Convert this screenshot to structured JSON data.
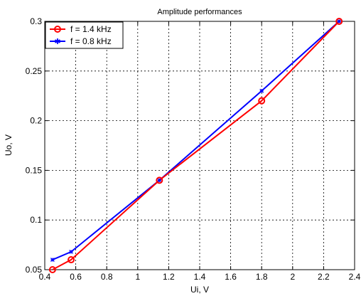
{
  "chart_data": {
    "type": "line",
    "title": "Amplitude performances",
    "xlabel": "Ui, V",
    "ylabel": "Uo, V",
    "xlim": [
      0.4,
      2.4
    ],
    "ylim": [
      0.05,
      0.3
    ],
    "xticks": [
      0.4,
      0.6,
      0.8,
      1,
      1.2,
      1.4,
      1.6,
      1.8,
      2,
      2.2,
      2.4
    ],
    "xtick_labels": [
      "0.4",
      "0.6",
      "0.8",
      "1",
      "1.2",
      "1.4",
      "1.6",
      "1.8",
      "2",
      "2.2",
      "2.4"
    ],
    "yticks": [
      0.05,
      0.1,
      0.15,
      0.2,
      0.25,
      0.3
    ],
    "ytick_labels": [
      "0.05",
      "0.1",
      "0.15",
      "0.2",
      "0.25",
      "0.3"
    ],
    "grid": true,
    "legend_position": "top-left",
    "series": [
      {
        "name": "f = 1.4 kHz",
        "color": "#ff0000",
        "marker": "circle",
        "x": [
          0.45,
          0.57,
          1.14,
          1.8,
          2.3
        ],
        "y": [
          0.05,
          0.06,
          0.14,
          0.22,
          0.3
        ]
      },
      {
        "name": "f = 0.8 kHz",
        "color": "#0000ff",
        "marker": "star",
        "x": [
          0.45,
          0.57,
          1.14,
          1.8,
          2.3
        ],
        "y": [
          0.06,
          0.068,
          0.14,
          0.23,
          0.3
        ]
      }
    ]
  }
}
